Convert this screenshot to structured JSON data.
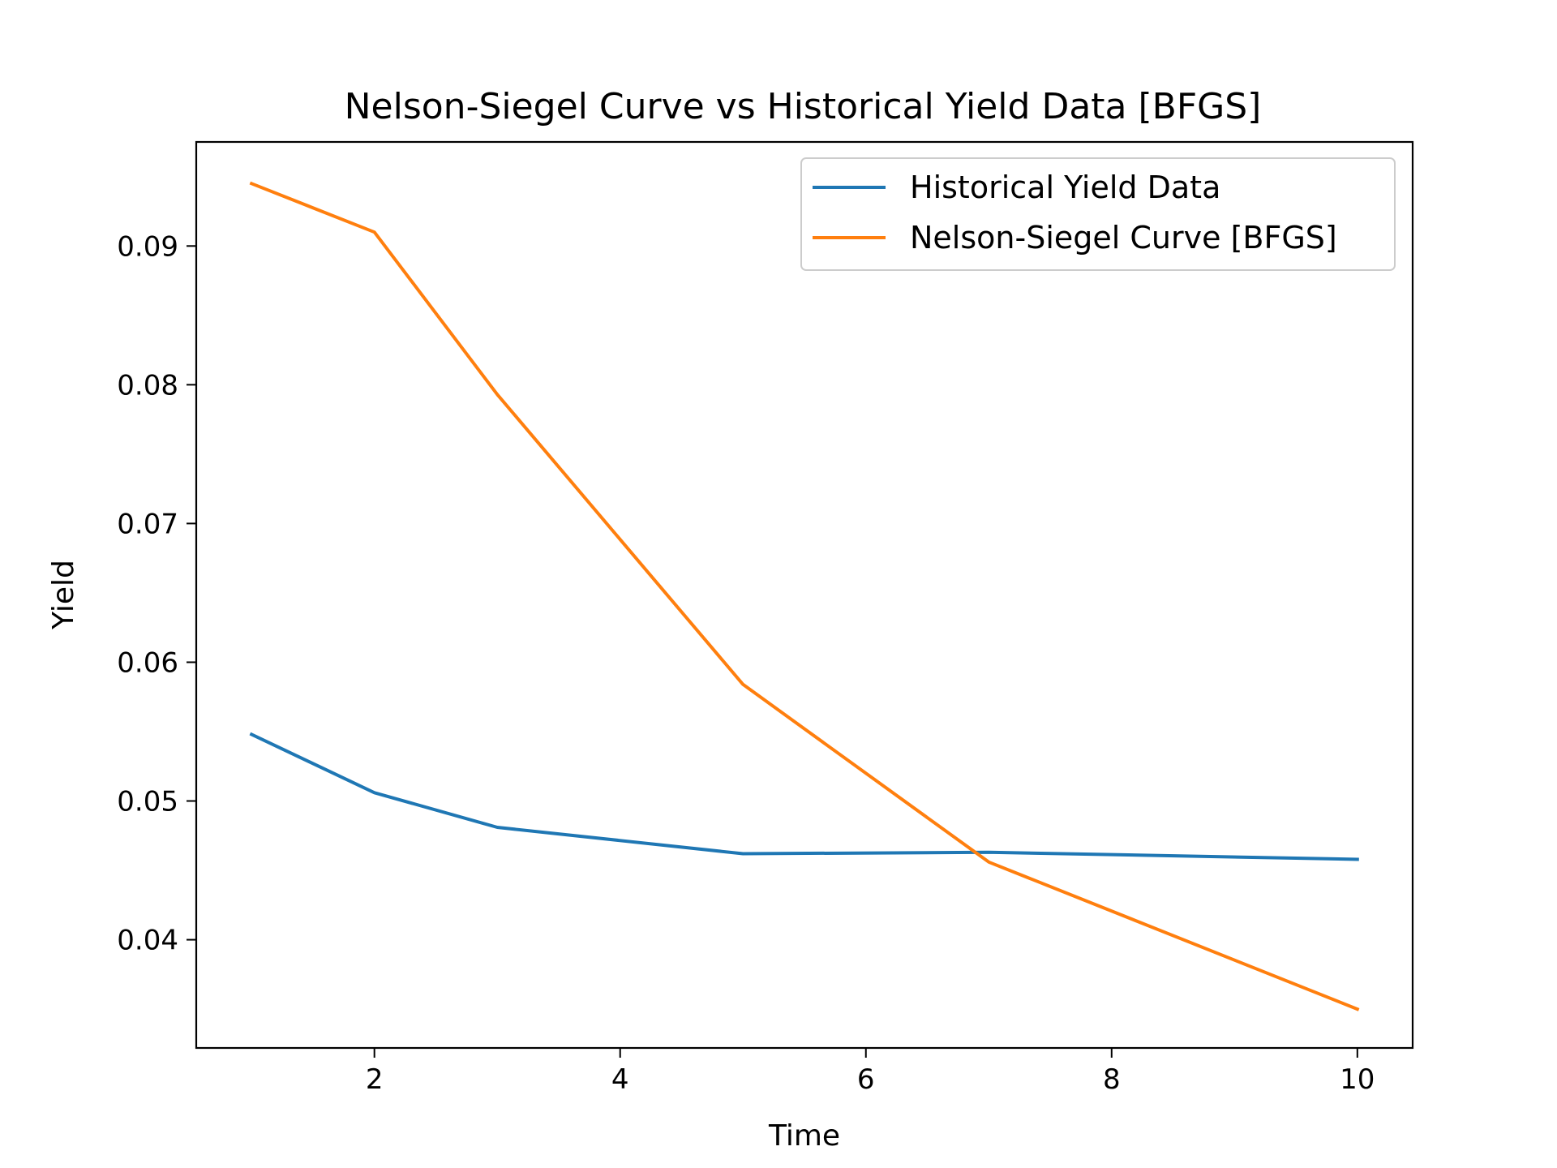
{
  "chart_data": {
    "type": "line",
    "title": "Nelson-Siegel Curve vs Historical Yield Data [BFGS]",
    "xlabel": "Time",
    "ylabel": "Yield",
    "xlim": [
      0.55,
      10.45
    ],
    "ylim": [
      0.0322,
      0.0975
    ],
    "xticks": [
      2,
      4,
      6,
      8,
      10
    ],
    "yticks": [
      0.04,
      0.05,
      0.06,
      0.07,
      0.08,
      0.09
    ],
    "xtick_labels": [
      "2",
      "4",
      "6",
      "8",
      "10"
    ],
    "ytick_labels": [
      "0.04",
      "0.05",
      "0.06",
      "0.07",
      "0.08",
      "0.09"
    ],
    "grid": false,
    "legend_position": "top-right",
    "series": [
      {
        "name": "Historical Yield Data",
        "color": "#1f77b4",
        "x": [
          1,
          2,
          3,
          5,
          7,
          10
        ],
        "y": [
          0.0548,
          0.0506,
          0.0481,
          0.0462,
          0.0463,
          0.0458
        ]
      },
      {
        "name": "Nelson-Siegel Curve [BFGS]",
        "color": "#ff7f0e",
        "x": [
          1,
          2,
          3,
          5,
          7,
          10
        ],
        "y": [
          0.0945,
          0.091,
          0.0793,
          0.0584,
          0.0456,
          0.035
        ]
      }
    ]
  }
}
